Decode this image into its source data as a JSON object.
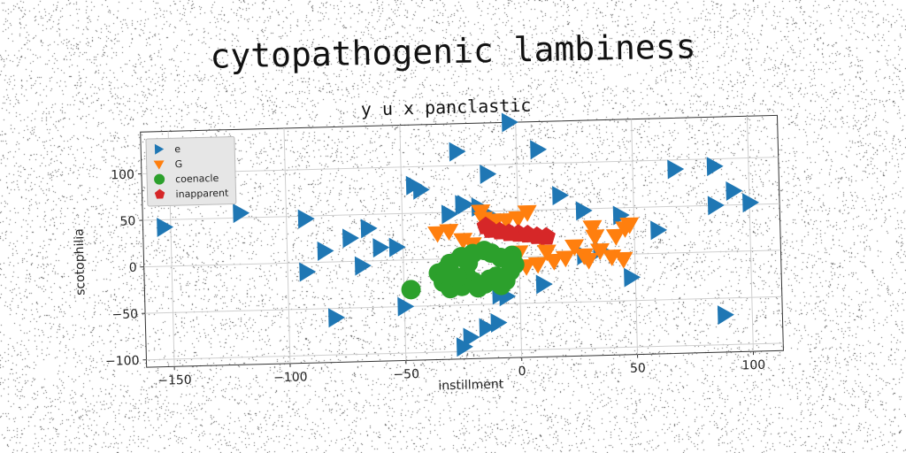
{
  "figure_title": "cytopathogenic lambiness",
  "chart_data": {
    "type": "scatter",
    "title": "y u x panclastic",
    "xlabel": "instillment",
    "ylabel": "scotophilia",
    "xlim": [
      -162,
      113
    ],
    "ylim": [
      -108,
      145
    ],
    "xticks": [
      -150,
      -100,
      -50,
      0,
      50,
      100
    ],
    "yticks": [
      -100,
      -50,
      0,
      50,
      100
    ],
    "grid": true,
    "legend_position": "top-left",
    "series": [
      {
        "name": "e",
        "marker": "triangle-right",
        "color": "#1f77b4",
        "points": [
          [
            -153,
            42
          ],
          [
            -120,
            55
          ],
          [
            -92,
            47
          ],
          [
            -84,
            12
          ],
          [
            -73,
            25
          ],
          [
            -65,
            35
          ],
          [
            -60,
            14
          ],
          [
            -53,
            14
          ],
          [
            -68,
            -5
          ],
          [
            -92,
            -10
          ],
          [
            -80,
            -60
          ],
          [
            -50,
            -50
          ],
          [
            -45,
            80
          ],
          [
            -42,
            75
          ],
          [
            -26,
            115
          ],
          [
            -13,
            90
          ],
          [
            -10,
            -70
          ],
          [
            -15,
            -75
          ],
          [
            -22,
            -85
          ],
          [
            -25,
            -95
          ],
          [
            -9,
            -40
          ],
          [
            -6,
            -42
          ],
          [
            -23,
            58
          ],
          [
            -17,
            55
          ],
          [
            -30,
            48
          ],
          [
            -12,
            45
          ],
          [
            -24,
            58
          ],
          [
            -3,
            145
          ],
          [
            9,
            115
          ],
          [
            18,
            65
          ],
          [
            28,
            48
          ],
          [
            44,
            42
          ],
          [
            60,
            25
          ],
          [
            68,
            90
          ],
          [
            85,
            92
          ],
          [
            88,
            -68
          ],
          [
            85,
            50
          ],
          [
            93,
            65
          ],
          [
            100,
            52
          ],
          [
            10,
            -30
          ],
          [
            48,
            -25
          ],
          [
            28,
            0
          ],
          [
            35,
            5
          ]
        ]
      },
      {
        "name": "G",
        "marker": "triangle-down",
        "color": "#ff7f0e",
        "points": [
          [
            -35,
            28
          ],
          [
            -30,
            30
          ],
          [
            -24,
            20
          ],
          [
            -20,
            15
          ],
          [
            -15,
            42
          ],
          [
            -10,
            38
          ],
          [
            -5,
            40
          ],
          [
            0,
            42
          ],
          [
            4,
            48
          ],
          [
            -16,
            50
          ],
          [
            -12,
            40
          ],
          [
            3,
            -10
          ],
          [
            8,
            -8
          ],
          [
            12,
            5
          ],
          [
            15,
            -5
          ],
          [
            20,
            -2
          ],
          [
            24,
            10
          ],
          [
            28,
            0
          ],
          [
            30,
            -5
          ],
          [
            32,
            30
          ],
          [
            33,
            20
          ],
          [
            40,
            -2
          ],
          [
            45,
            -5
          ],
          [
            42,
            20
          ],
          [
            46,
            28
          ],
          [
            48,
            32
          ],
          [
            -9,
            0
          ],
          [
            -5,
            -3
          ],
          [
            0,
            5
          ],
          [
            35,
            5
          ],
          [
            10,
            18
          ]
        ]
      },
      {
        "name": "coenacle",
        "marker": "circle",
        "color": "#2ca02c",
        "points": [
          [
            -47,
            -32
          ],
          [
            -35,
            -15
          ],
          [
            -33,
            -25
          ],
          [
            -30,
            -32
          ],
          [
            -25,
            -30
          ],
          [
            -23,
            -18
          ],
          [
            -22,
            -5
          ],
          [
            -20,
            -25
          ],
          [
            -18,
            -32
          ],
          [
            -15,
            -28
          ],
          [
            -13,
            -23
          ],
          [
            -10,
            -20
          ],
          [
            -8,
            -30
          ],
          [
            -6,
            -25
          ],
          [
            -4,
            -15
          ],
          [
            -2,
            -8
          ],
          [
            -3,
            2
          ],
          [
            -5,
            -2
          ],
          [
            -8,
            0
          ],
          [
            -12,
            5
          ],
          [
            -15,
            8
          ],
          [
            -20,
            5
          ],
          [
            -25,
            2
          ],
          [
            -30,
            -5
          ],
          [
            -32,
            -12
          ],
          [
            -27,
            -20
          ]
        ]
      },
      {
        "name": "inapparent",
        "marker": "pentagon",
        "color": "#d62728",
        "points": [
          [
            -12,
            30
          ],
          [
            -8,
            28
          ],
          [
            -4,
            26
          ],
          [
            0,
            25
          ],
          [
            4,
            24
          ],
          [
            8,
            22
          ],
          [
            12,
            21
          ],
          [
            -14,
            34
          ]
        ]
      }
    ]
  }
}
